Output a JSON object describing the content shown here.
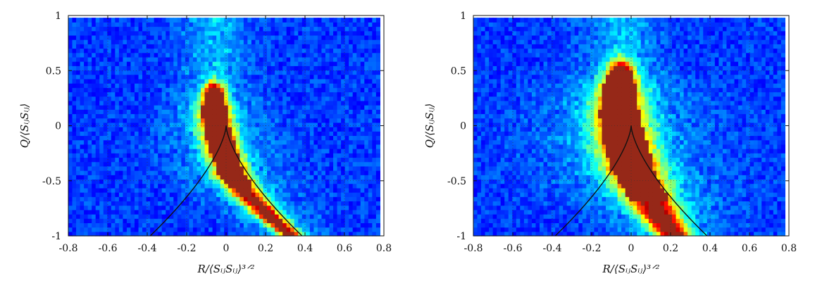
{
  "chart_data": [
    {
      "type": "heatmap",
      "title": "",
      "xlabel": "R/⟨SᵢⱼSᵢⱼ⟩³ᐟ²",
      "ylabel": "Q/⟨SᵢⱼSᵢⱼ⟩",
      "xlim": [
        -0.8,
        0.8
      ],
      "ylim": [
        -1,
        1
      ],
      "xticks": [
        "-0.8",
        "-0.6",
        "-0.4",
        "-0.2",
        "0",
        "0.2",
        "0.4",
        "0.6",
        "0.8"
      ],
      "yticks": [
        "1",
        "0.5",
        "0",
        "-0.5",
        "-1"
      ],
      "xtick_values": [
        -0.8,
        -0.6,
        -0.4,
        -0.2,
        0,
        0.2,
        0.4,
        0.6,
        0.8
      ],
      "ytick_values": [
        1,
        0.5,
        0,
        -0.5,
        -1
      ],
      "grid": true,
      "colormap": "jet",
      "data_extent_x": [
        -0.8,
        0.78
      ],
      "data_extent_y": [
        -1,
        0.98
      ],
      "density_ridge": [
        {
          "q": 0.35,
          "r": -0.06,
          "half_width": 0.05
        },
        {
          "q": 0.2,
          "r": -0.06,
          "half_width": 0.07
        },
        {
          "q": 0.0,
          "r": -0.05,
          "half_width": 0.08
        },
        {
          "q": -0.2,
          "r": -0.02,
          "half_width": 0.08
        },
        {
          "q": -0.45,
          "r": 0.03,
          "half_width": 0.08
        },
        {
          "q": -0.65,
          "r": 0.12,
          "half_width": 0.07
        },
        {
          "q": -0.85,
          "r": 0.24,
          "half_width": 0.06
        },
        {
          "q": -1.0,
          "r": 0.33,
          "half_width": 0.05
        }
      ],
      "core_q_range": [
        -0.55,
        0.3
      ],
      "vieillefosse_line": true
    },
    {
      "type": "heatmap",
      "title": "",
      "xlabel": "R/⟨SᵢⱼSᵢⱼ⟩³ᐟ²",
      "ylabel": "Q/⟨SᵢⱼSᵢⱼ⟩",
      "xlim": [
        -0.8,
        0.8
      ],
      "ylim": [
        -1,
        1
      ],
      "xticks": [
        "-0.8",
        "-0.6",
        "-0.4",
        "-0.2",
        "0",
        "0.2",
        "0.4",
        "0.6",
        "0.8"
      ],
      "yticks": [
        "1",
        "0.5",
        "0",
        "-0.5",
        "-1"
      ],
      "xtick_values": [
        -0.8,
        -0.6,
        -0.4,
        -0.2,
        0,
        0.2,
        0.4,
        0.6,
        0.8
      ],
      "ytick_values": [
        1,
        0.5,
        0,
        -0.5,
        -1
      ],
      "grid": true,
      "colormap": "jet",
      "data_extent_x": [
        -0.8,
        0.78
      ],
      "data_extent_y": [
        -1,
        0.98
      ],
      "density_ridge": [
        {
          "q": 0.55,
          "r": -0.05,
          "half_width": 0.06
        },
        {
          "q": 0.35,
          "r": -0.06,
          "half_width": 0.1
        },
        {
          "q": 0.1,
          "r": -0.06,
          "half_width": 0.12
        },
        {
          "q": -0.15,
          "r": -0.03,
          "half_width": 0.13
        },
        {
          "q": -0.4,
          "r": 0.01,
          "half_width": 0.13
        },
        {
          "q": -0.6,
          "r": 0.07,
          "half_width": 0.12
        },
        {
          "q": -0.8,
          "r": 0.14,
          "half_width": 0.1
        },
        {
          "q": -1.0,
          "r": 0.22,
          "half_width": 0.08
        }
      ],
      "core_q_range": [
        -0.7,
        0.5
      ],
      "vieillefosse_line": true
    }
  ]
}
